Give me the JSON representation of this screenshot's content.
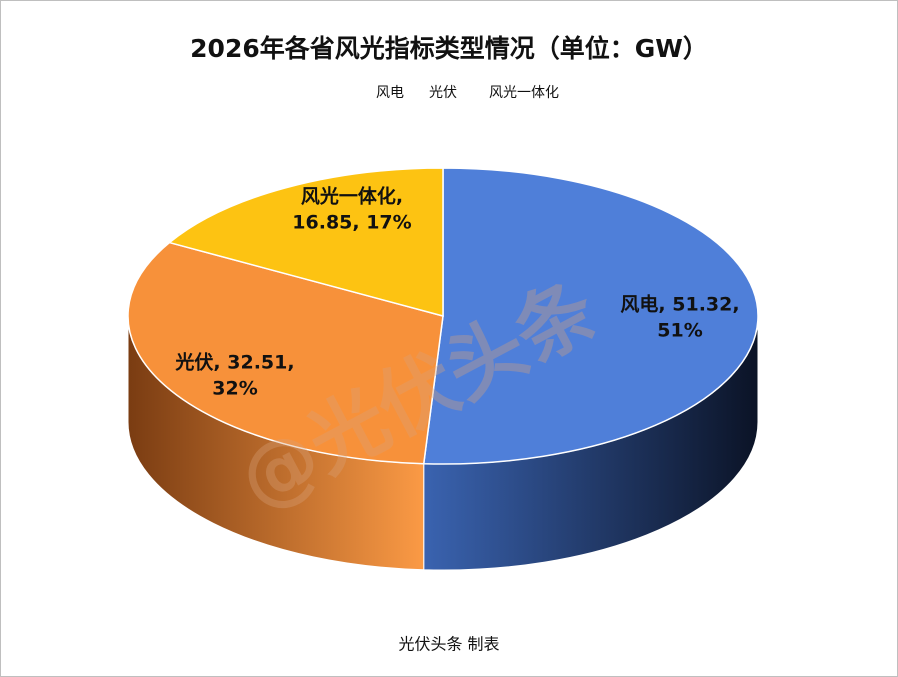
{
  "chart_data": {
    "type": "pie3d",
    "title": "2026年各省风光指标类型情况（单位：GW）",
    "categories": [
      "风电",
      "光伏",
      "风光一体化"
    ],
    "values": [
      51.32,
      32.51,
      16.85
    ],
    "data_labels": [
      [
        "风电, 51.32,",
        "51%"
      ],
      [
        "光伏, 32.51,",
        "32%"
      ],
      [
        "风光一体化,",
        "16.85, 17%"
      ]
    ],
    "colors": [
      "#4f7fd9",
      "#f7913a",
      "#fdc312"
    ],
    "side_colors": [
      [
        "#3a63b0",
        "#0b1326"
      ],
      [
        "#7a3c12",
        "#fb9a45"
      ],
      [
        "#c99300",
        "#fdc312"
      ]
    ],
    "source": "光伏头条 制表",
    "watermark": "@光伏头条"
  }
}
